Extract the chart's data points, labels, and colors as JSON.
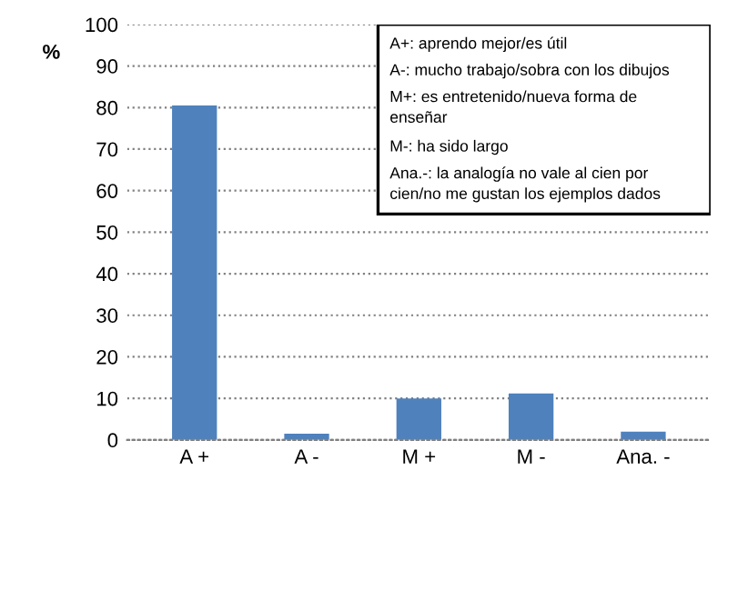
{
  "chart_data": {
    "type": "bar",
    "ylabel": "%",
    "categories": [
      "A +",
      "A -",
      "M +",
      "M -",
      "Ana. -"
    ],
    "values": [
      80.5,
      1.5,
      10,
      11.2,
      2
    ],
    "color": "#4f81bd",
    "ylim": [
      0,
      100
    ],
    "yticks": [
      0,
      10,
      20,
      30,
      40,
      50,
      60,
      70,
      80,
      90,
      100
    ],
    "grid": "y",
    "annotations": [
      "A+: aprendo mejor/es útil",
      "A-: mucho trabajo/sobra con los dibujos",
      "M+: es entretenido/nueva forma de enseñar",
      "M-: ha sido largo",
      "Ana.-: la analogía no vale al cien por cien/no me gustan los ejemplos dados"
    ]
  }
}
